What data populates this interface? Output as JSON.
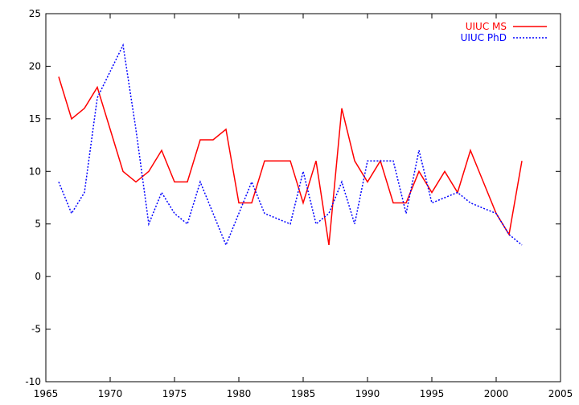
{
  "chart_data": {
    "type": "line",
    "title": "",
    "xlabel": "",
    "ylabel": "",
    "xlim": [
      1965,
      2005
    ],
    "ylim": [
      -10,
      25
    ],
    "xticks": [
      1965,
      1970,
      1975,
      1980,
      1985,
      1990,
      1995,
      2000,
      2005
    ],
    "yticks": [
      -10,
      -5,
      0,
      5,
      10,
      15,
      20,
      25
    ],
    "grid": false,
    "legend_position": "top-right",
    "series": [
      {
        "name": "UIUC MS",
        "color": "#ff0000",
        "dash": "solid",
        "x": [
          1966,
          1967,
          1968,
          1969,
          1970,
          1971,
          1972,
          1973,
          1974,
          1975,
          1976,
          1977,
          1978,
          1979,
          1980,
          1981,
          1982,
          1983,
          1984,
          1985,
          1986,
          1987,
          1988,
          1989,
          1990,
          1991,
          1992,
          1993,
          1994,
          1995,
          1996,
          1997,
          1998,
          1999,
          2000,
          2001,
          2002
        ],
        "y": [
          19,
          15,
          16,
          18,
          14,
          10,
          9,
          10,
          12,
          9,
          9,
          13,
          13,
          14,
          7,
          7,
          11,
          11,
          11,
          7,
          11,
          3,
          16,
          11,
          9,
          11,
          7,
          7,
          10,
          8,
          10,
          8,
          12,
          9,
          6,
          4,
          11
        ]
      },
      {
        "name": "UIUC PhD",
        "color": "#0000ff",
        "dash": "dotted",
        "x": [
          1966,
          1967,
          1968,
          1969,
          1970,
          1971,
          1972,
          1973,
          1974,
          1975,
          1976,
          1977,
          1978,
          1979,
          1980,
          1981,
          1982,
          1983,
          1984,
          1985,
          1986,
          1987,
          1988,
          1989,
          1990,
          1991,
          1992,
          1993,
          1994,
          1995,
          1996,
          1997,
          1998,
          1999,
          2000,
          2001,
          2002
        ],
        "y": [
          9,
          6,
          8,
          17,
          19.5,
          22,
          14,
          5,
          8,
          6,
          5,
          9,
          6,
          3,
          6,
          9,
          6,
          5.5,
          5,
          10,
          5,
          6,
          9,
          5,
          11,
          11,
          11,
          6,
          12,
          7,
          7.5,
          8,
          7,
          6.5,
          6,
          4,
          3
        ]
      }
    ]
  }
}
